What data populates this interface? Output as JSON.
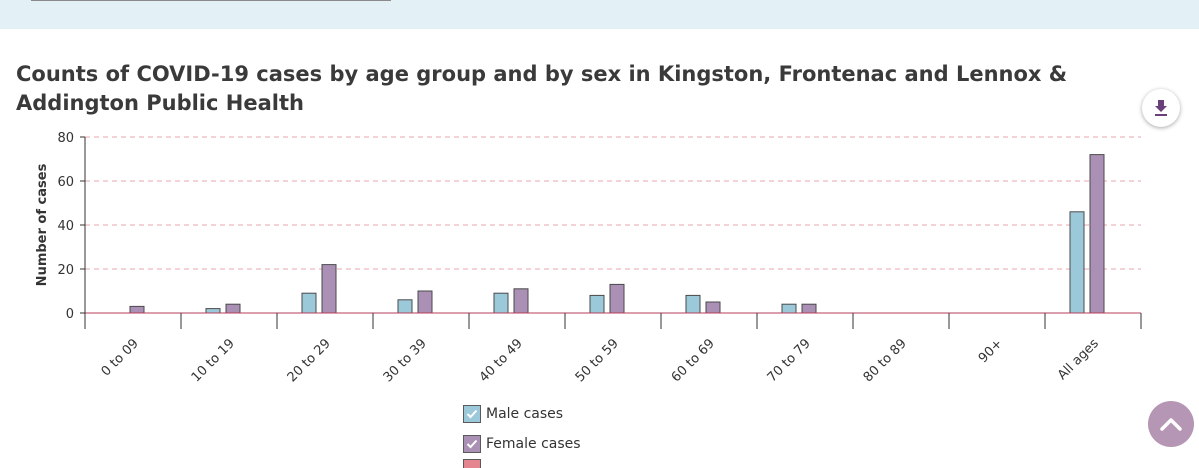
{
  "chart_data": {
    "type": "bar",
    "title": "Counts of COVID-19 cases by age group and by sex in Kingston, Frontenac and Lennox & Addington Public Health",
    "xlabel": "",
    "ylabel": "Number of cases",
    "ylim": [
      0,
      80
    ],
    "yticks": [
      "0",
      "20",
      "40",
      "60",
      "80"
    ],
    "grid": true,
    "legend_position": "bottom-center",
    "categories": [
      "0 to 09",
      "10 to 19",
      "20 to 29",
      "30 to 39",
      "40 to 49",
      "50 to 59",
      "60 to 69",
      "70 to 79",
      "80 to 89",
      "90+",
      "All ages"
    ],
    "series": [
      {
        "name": "Male cases",
        "color": "#9cc9da",
        "values": [
          0,
          2,
          9,
          6,
          9,
          8,
          8,
          4,
          0,
          0,
          46
        ]
      },
      {
        "name": "Female cases",
        "color": "#a990b4",
        "values": [
          3,
          4,
          22,
          10,
          11,
          13,
          5,
          4,
          0,
          0,
          72
        ]
      },
      {
        "color": "#e5858f",
        "values": [
          0,
          0,
          0,
          0,
          0,
          0,
          0,
          0,
          0,
          0,
          0
        ]
      }
    ]
  },
  "icons": {
    "download": "download-icon",
    "scroll_top": "chevron-up-icon",
    "legend_check": "check-icon"
  },
  "colors": {
    "grid": "#e8a5ad",
    "axis": "#333333",
    "accent": "#6b3f7a"
  }
}
